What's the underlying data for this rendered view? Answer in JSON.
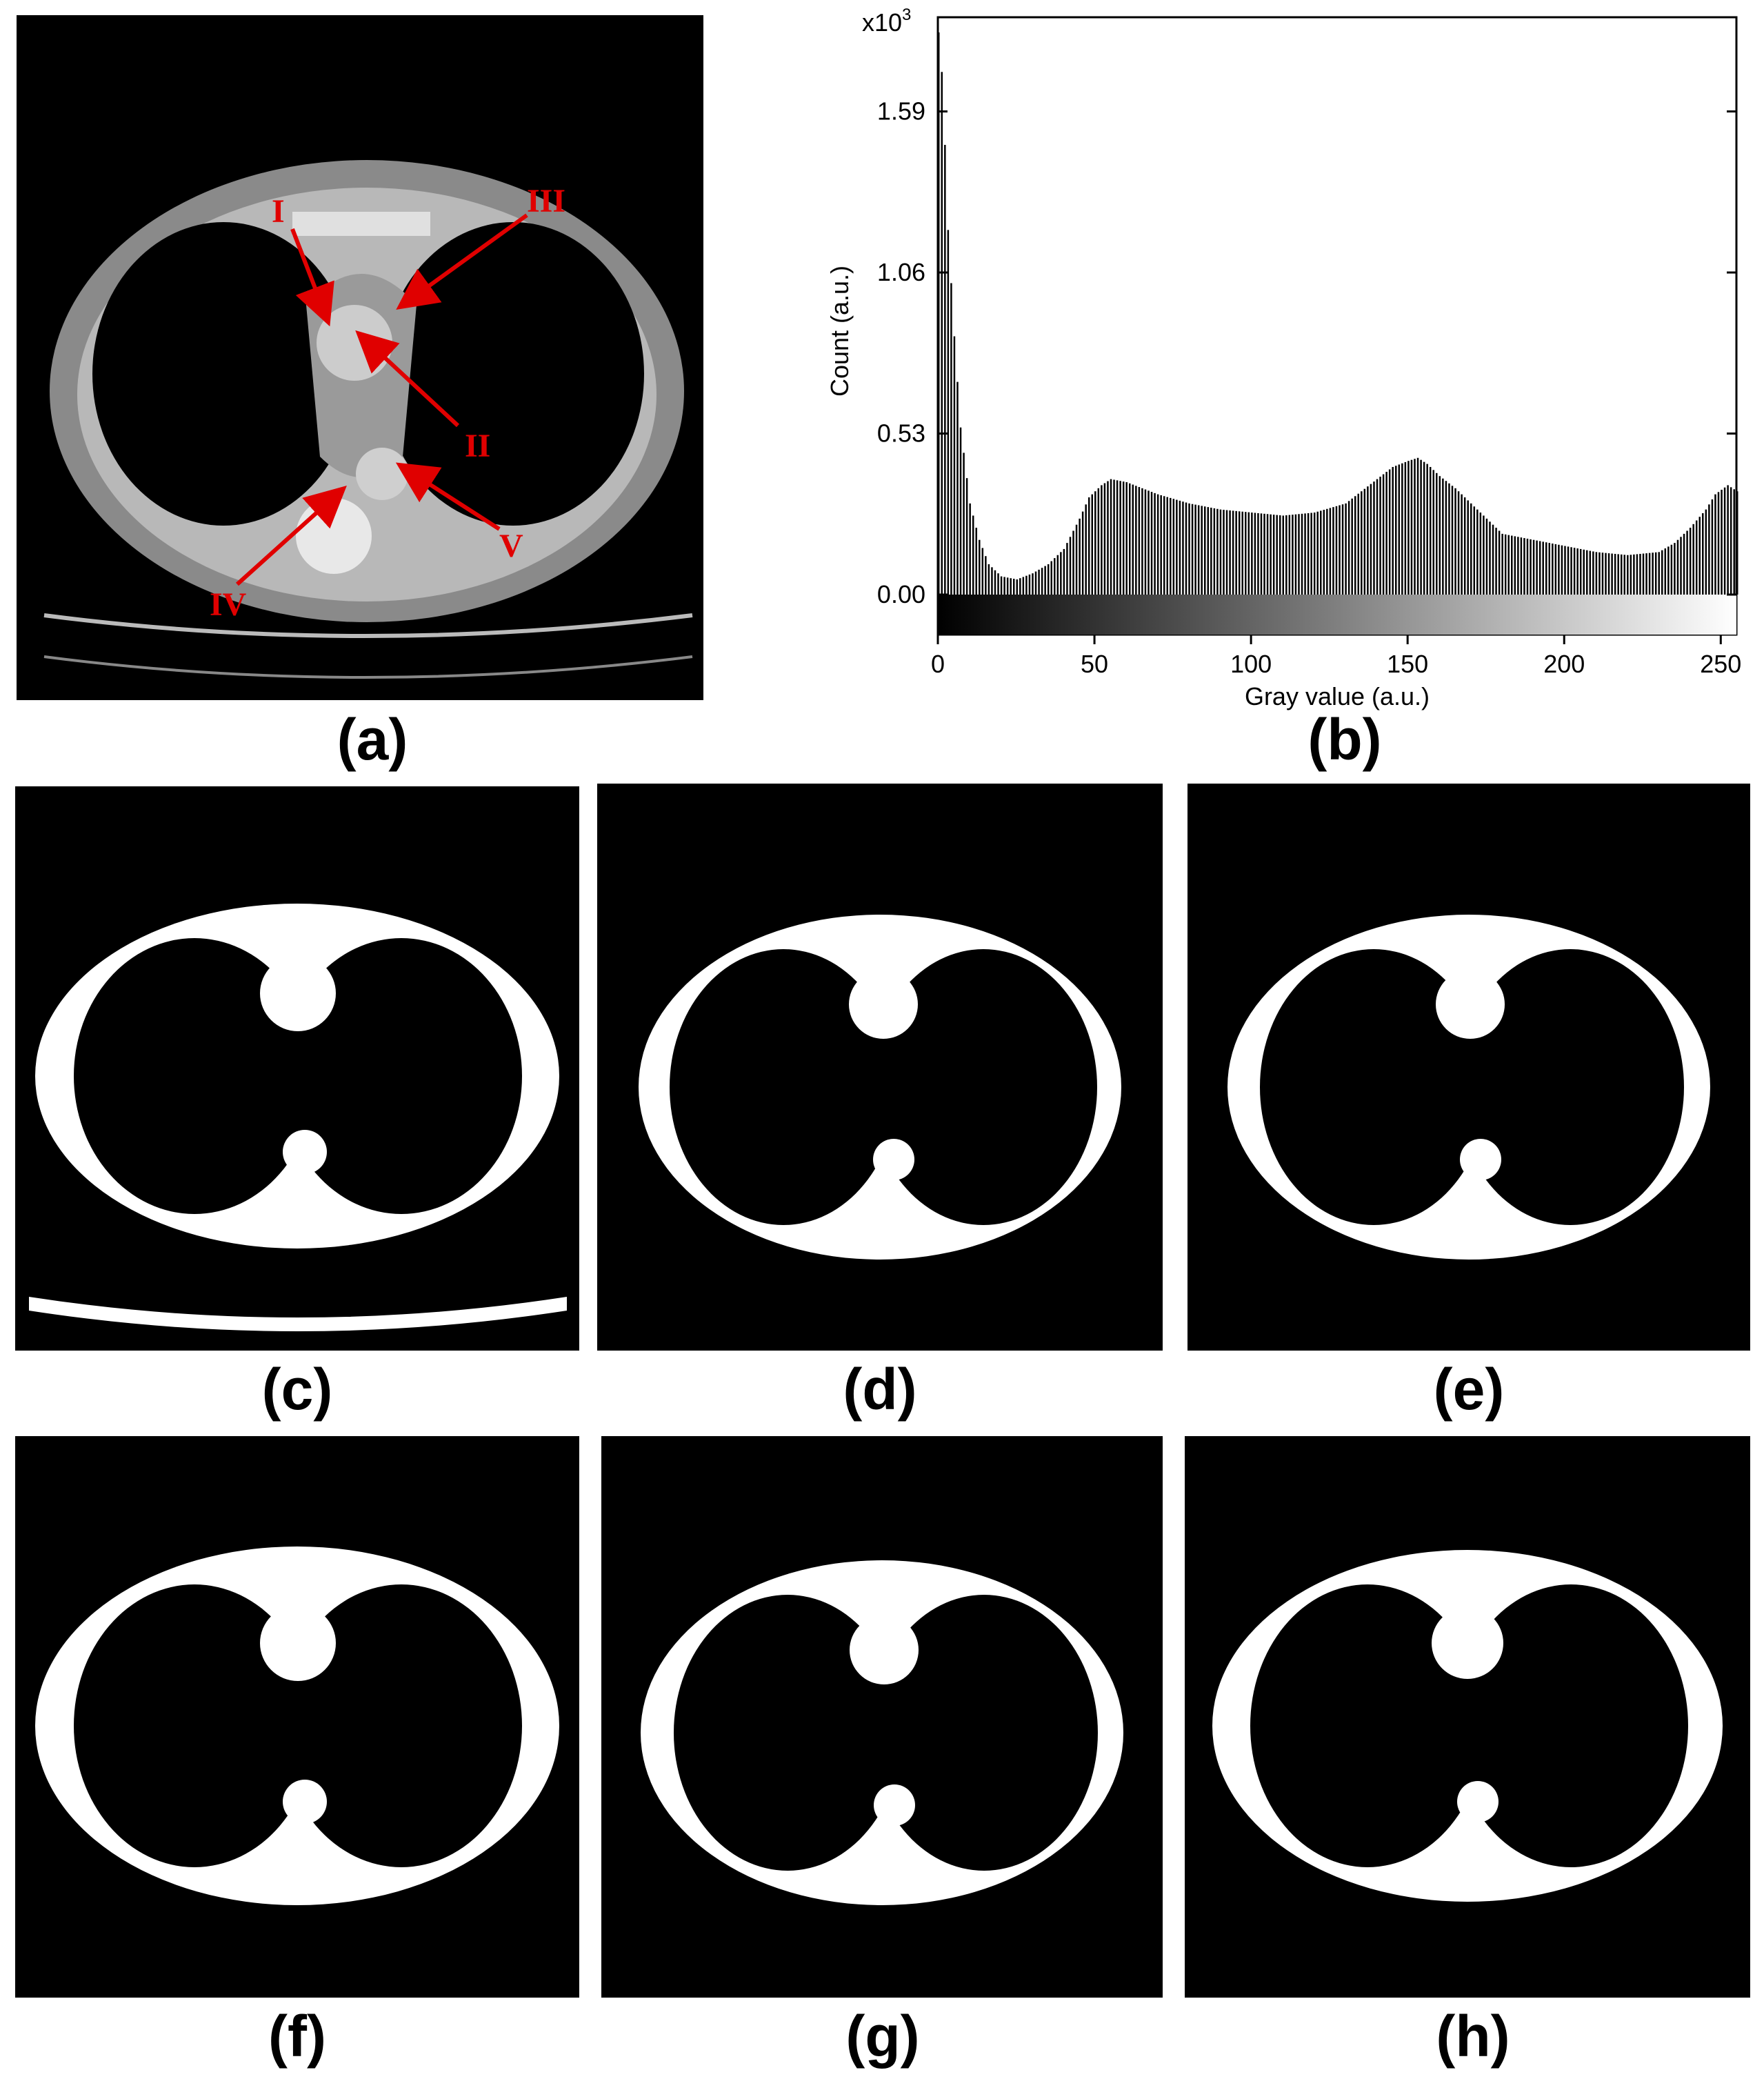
{
  "panels": {
    "a": {
      "caption": "(a)"
    },
    "b": {
      "caption": "(b)"
    },
    "c": {
      "caption": "(c)"
    },
    "d": {
      "caption": "(d)"
    },
    "e": {
      "caption": "(e)"
    },
    "f": {
      "caption": "(f)"
    },
    "g": {
      "caption": "(g)"
    },
    "h": {
      "caption": "(h)"
    }
  },
  "annotations": {
    "I": "I",
    "II": "II",
    "III": "III",
    "IV": "IV",
    "V": "V",
    "arrow_color": "#e00000"
  },
  "chart_data": {
    "type": "bar",
    "title": "",
    "xlabel": "Gray value (a.u.)",
    "ylabel": "Count (a.u.)",
    "y_multiplier_label": "x10",
    "y_multiplier_exponent": "3",
    "xlim": [
      0,
      255
    ],
    "ylim": [
      0,
      1.9
    ],
    "x_ticks": [
      0,
      50,
      100,
      150,
      200,
      250
    ],
    "y_ticks": [
      0.0,
      0.53,
      1.06,
      1.59
    ],
    "y_tick_labels": [
      "0.00",
      "0.53",
      "1.06",
      "1.59"
    ],
    "grayscale_bar": true,
    "grid": false,
    "bar_color": "#000000",
    "histogram_keypoints": {
      "x": [
        0,
        1,
        2,
        3,
        5,
        7,
        10,
        13,
        16,
        20,
        25,
        30,
        35,
        40,
        45,
        48,
        52,
        55,
        60,
        65,
        70,
        80,
        90,
        100,
        110,
        120,
        130,
        135,
        140,
        145,
        150,
        153,
        156,
        160,
        165,
        170,
        175,
        180,
        190,
        200,
        210,
        220,
        230,
        235,
        240,
        245,
        248,
        252,
        255
      ],
      "y": [
        1.85,
        1.72,
        1.48,
        1.2,
        0.85,
        0.55,
        0.3,
        0.18,
        0.1,
        0.06,
        0.05,
        0.07,
        0.1,
        0.15,
        0.25,
        0.32,
        0.36,
        0.38,
        0.37,
        0.35,
        0.33,
        0.3,
        0.28,
        0.27,
        0.26,
        0.27,
        0.3,
        0.34,
        0.38,
        0.42,
        0.44,
        0.45,
        0.43,
        0.39,
        0.35,
        0.3,
        0.25,
        0.2,
        0.18,
        0.16,
        0.14,
        0.13,
        0.14,
        0.17,
        0.22,
        0.28,
        0.33,
        0.36,
        0.34
      ]
    }
  }
}
